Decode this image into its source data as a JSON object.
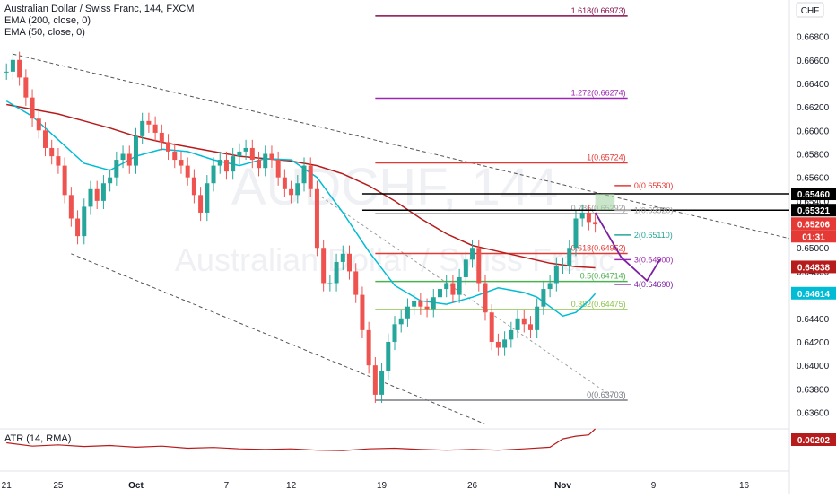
{
  "chart_data": {
    "type": "line",
    "title": "Australian Dollar / Swiss Franc, 144, FXCM",
    "watermark": {
      "symbol": "AUDCHF, 144",
      "name": "Australian Dollar / Swiss Franc"
    },
    "indicators": [
      "EMA (200, close, 0)",
      "EMA (50, close, 0)"
    ],
    "currency": "CHF",
    "ylim": [
      0.6352,
      0.6711
    ],
    "y_ticks": [
      "0.66800",
      "0.66600",
      "0.66400",
      "0.66200",
      "0.66000",
      "0.65800",
      "0.65600",
      "0.65400",
      "0.65200",
      "0.65000",
      "0.64800",
      "0.64600",
      "0.64400",
      "0.64200",
      "0.64000",
      "0.63800",
      "0.63600"
    ],
    "y_tick_values": [
      0.668,
      0.666,
      0.664,
      0.662,
      0.66,
      0.658,
      0.656,
      0.654,
      0.652,
      0.65,
      0.648,
      0.646,
      0.644,
      0.642,
      0.64,
      0.638,
      0.636
    ],
    "x_ticks": [
      "21",
      "25",
      "Oct",
      "7",
      "12",
      "19",
      "26",
      "Nov",
      "9",
      "16"
    ],
    "x_tick_days": [
      0,
      4,
      10,
      17,
      22,
      29,
      36,
      43,
      50,
      57
    ],
    "xlim": [
      -0.5,
      60.5
    ],
    "price_series": {
      "name": "AUDCHF",
      "days": [
        0,
        0.5,
        1,
        1.5,
        2,
        2.5,
        3,
        3.5,
        4,
        4.5,
        5,
        5.5,
        6,
        6.5,
        7,
        7.5,
        8,
        8.5,
        9,
        9.5,
        10,
        10.5,
        11,
        11.5,
        12,
        12.5,
        13,
        13.5,
        14,
        14.5,
        15,
        15.5,
        16,
        16.5,
        17,
        17.5,
        18,
        18.5,
        19,
        19.5,
        20,
        20.5,
        21,
        21.5,
        22,
        22.5,
        23,
        23.5,
        24,
        24.5,
        25,
        25.5,
        26,
        26.5,
        27,
        27.5,
        28,
        28.5,
        29,
        29.5,
        30,
        30.5,
        31,
        31.5,
        32,
        32.5,
        33,
        33.5,
        34,
        34.5,
        35,
        35.5,
        36,
        36.5,
        37,
        37.5,
        38,
        38.5,
        39,
        39.5,
        40,
        40.5,
        41,
        41.5,
        42,
        42.5,
        43,
        43.5,
        44,
        44.5,
        45,
        45.5
      ],
      "values": [
        0.665,
        0.666,
        0.6645,
        0.6628,
        0.661,
        0.66,
        0.6585,
        0.6578,
        0.657,
        0.6545,
        0.6525,
        0.651,
        0.6535,
        0.655,
        0.654,
        0.6555,
        0.656,
        0.6575,
        0.658,
        0.657,
        0.6595,
        0.6608,
        0.6605,
        0.6598,
        0.659,
        0.6582,
        0.6575,
        0.657,
        0.656,
        0.6545,
        0.653,
        0.6555,
        0.657,
        0.6575,
        0.6565,
        0.6578,
        0.6582,
        0.6585,
        0.6575,
        0.6568,
        0.658,
        0.6575,
        0.656,
        0.655,
        0.6545,
        0.6555,
        0.657,
        0.655,
        0.65,
        0.647,
        0.647,
        0.6488,
        0.6495,
        0.648,
        0.646,
        0.643,
        0.64,
        0.6375,
        0.6395,
        0.642,
        0.6435,
        0.644,
        0.645,
        0.6455,
        0.645,
        0.6448,
        0.6458,
        0.6465,
        0.647,
        0.646,
        0.6475,
        0.649,
        0.65,
        0.647,
        0.6445,
        0.642,
        0.6415,
        0.6422,
        0.643,
        0.644,
        0.6435,
        0.643,
        0.645,
        0.6465,
        0.647,
        0.6485,
        0.6485,
        0.65,
        0.6525,
        0.653,
        0.6522,
        0.652
      ]
    },
    "ema200": {
      "days": [
        0,
        2,
        4,
        6,
        8,
        10,
        12,
        14,
        16,
        18,
        20,
        22,
        24,
        26,
        28,
        30,
        32,
        34,
        36,
        38,
        40,
        42,
        44,
        45.5
      ],
      "values": [
        0.6622,
        0.6618,
        0.6614,
        0.6608,
        0.6602,
        0.6595,
        0.659,
        0.6586,
        0.6582,
        0.6578,
        0.6576,
        0.6574,
        0.657,
        0.6563,
        0.6553,
        0.654,
        0.6525,
        0.6512,
        0.6502,
        0.6497,
        0.6492,
        0.6487,
        0.6484,
        0.6483
      ]
    },
    "ema50": {
      "days": [
        0,
        2,
        4,
        6,
        8,
        10,
        12,
        14,
        16,
        18,
        20,
        22,
        24,
        26,
        28,
        30,
        32,
        34,
        36,
        38,
        40,
        41,
        42,
        43,
        44,
        45,
        45.5
      ],
      "values": [
        0.6625,
        0.6612,
        0.6592,
        0.6572,
        0.6566,
        0.6578,
        0.6584,
        0.6582,
        0.6575,
        0.657,
        0.6576,
        0.6575,
        0.656,
        0.653,
        0.6497,
        0.6468,
        0.6455,
        0.6452,
        0.6458,
        0.6466,
        0.6462,
        0.6458,
        0.645,
        0.6442,
        0.6445,
        0.6455,
        0.6461
      ]
    },
    "channel_lines": [
      {
        "start": [
          0.5,
          0.6665
        ],
        "end": [
          60.5,
          0.6508
        ]
      },
      {
        "start": [
          5,
          0.6495
        ],
        "end": [
          37,
          0.635
        ]
      }
    ],
    "fib_levels": [
      {
        "ratio": "1.618",
        "price": 0.66973,
        "label": "1.618(0.66973)",
        "color": "#880e4f"
      },
      {
        "ratio": "1.272",
        "price": 0.66274,
        "label": "1.272(0.66274)",
        "color": "#9c27b0"
      },
      {
        "ratio": "1",
        "price": 0.65724,
        "label": "1(0.65724)",
        "color": "#e53935"
      },
      {
        "ratio": "0.786",
        "price": 0.65292,
        "label": "0.786(0.65292)",
        "color": "#9e9e9e"
      },
      {
        "ratio": "0.618",
        "price": 0.64952,
        "label": "0.618(0.64952)",
        "color": "#e53935"
      },
      {
        "ratio": "0.5",
        "price": 0.64714,
        "label": "0.5(0.64714)",
        "color": "#4caf50"
      },
      {
        "ratio": "0.382",
        "price": 0.64475,
        "label": "0.382(0.64475)",
        "color": "#8bc34a"
      },
      {
        "ratio": "0",
        "price": 0.63703,
        "label": "0(0.63703)",
        "color": "#787b86"
      }
    ],
    "target_levels": [
      {
        "label": "0(0.65530)",
        "price": 0.6553,
        "color": "#e53935"
      },
      {
        "label": "1(0.65320)",
        "price": 0.6532,
        "color": "#9e9e9e"
      },
      {
        "label": "2(0.65110)",
        "price": 0.6511,
        "color": "#26a69a"
      },
      {
        "label": "3(0.64900)",
        "price": 0.649,
        "color": "#9c27b0"
      },
      {
        "label": "4(0.64690)",
        "price": 0.6469,
        "color": "#7b1fa2"
      }
    ],
    "projection_path": {
      "days": [
        45.5,
        47.5,
        49.5,
        50.5
      ],
      "values": [
        0.653,
        0.6492,
        0.6472,
        0.649
      ]
    },
    "horizontal_lines": [
      {
        "price": 0.6546,
        "label": "0.65460",
        "color": "#000000"
      },
      {
        "price": 0.65321,
        "label": "0.65321",
        "color": "#000000"
      }
    ],
    "price_labels": [
      {
        "label": "0.65460",
        "price": 0.6546,
        "bg": "#000000"
      },
      {
        "label": "0.65321",
        "price": 0.65321,
        "bg": "#000000"
      },
      {
        "label": "0.65206",
        "price": 0.65206,
        "bg": "#e53935"
      },
      {
        "label": "01:31",
        "price": 0.65206,
        "bg": "#e53935"
      },
      {
        "label": "0.64838",
        "price": 0.64838,
        "bg": "#b71c1c"
      },
      {
        "label": "0.64614",
        "price": 0.64614,
        "bg": "#00bcd4"
      }
    ],
    "atr": {
      "label": "ATR (14, RMA)",
      "value_label": "0.00202",
      "days": [
        0,
        2,
        4,
        6,
        8,
        10,
        12,
        14,
        16,
        18,
        20,
        22,
        24,
        26,
        28,
        30,
        32,
        34,
        36,
        38,
        40,
        42,
        43,
        44,
        45,
        45.5
      ],
      "values": [
        0.58,
        0.48,
        0.52,
        0.47,
        0.5,
        0.45,
        0.48,
        0.42,
        0.44,
        0.4,
        0.38,
        0.4,
        0.36,
        0.35,
        0.4,
        0.42,
        0.38,
        0.36,
        0.38,
        0.36,
        0.4,
        0.45,
        0.7,
        0.78,
        0.82,
        1.0
      ]
    },
    "colors": {
      "up": "#26a69a",
      "down": "#ef5350",
      "ema200": "#b71c1c",
      "ema50": "#00bcd4",
      "projection": "#7b1fa2",
      "atr": "#b71c1c"
    }
  }
}
